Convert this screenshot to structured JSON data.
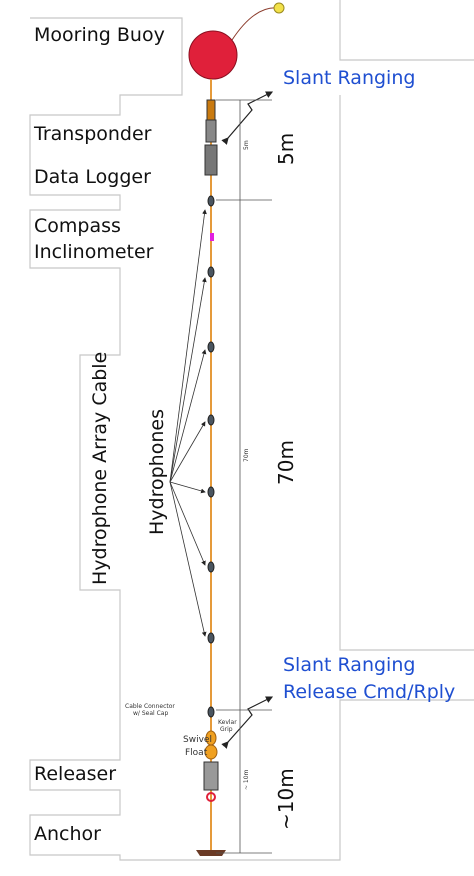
{
  "left_labels": [
    "Mooring Buoy",
    "Transponder",
    "Data Logger",
    "Compass",
    "Inclinometer",
    "Releaser",
    "Anchor"
  ],
  "vertical_labels": [
    "Hydrophone Array Cable",
    "Hydrophones"
  ],
  "slant_labels": [
    "Slant Ranging",
    "Slant Ranging",
    "Release Cmd/Rply"
  ],
  "dimensions": [
    "5m",
    "70m",
    "~10m"
  ],
  "small_labels": [
    "5m",
    "70m",
    "~ 10m",
    "Cable Connector",
    "w/ Seal Cap",
    "Kevlar",
    "Grip",
    "Swivel",
    "Float"
  ]
}
